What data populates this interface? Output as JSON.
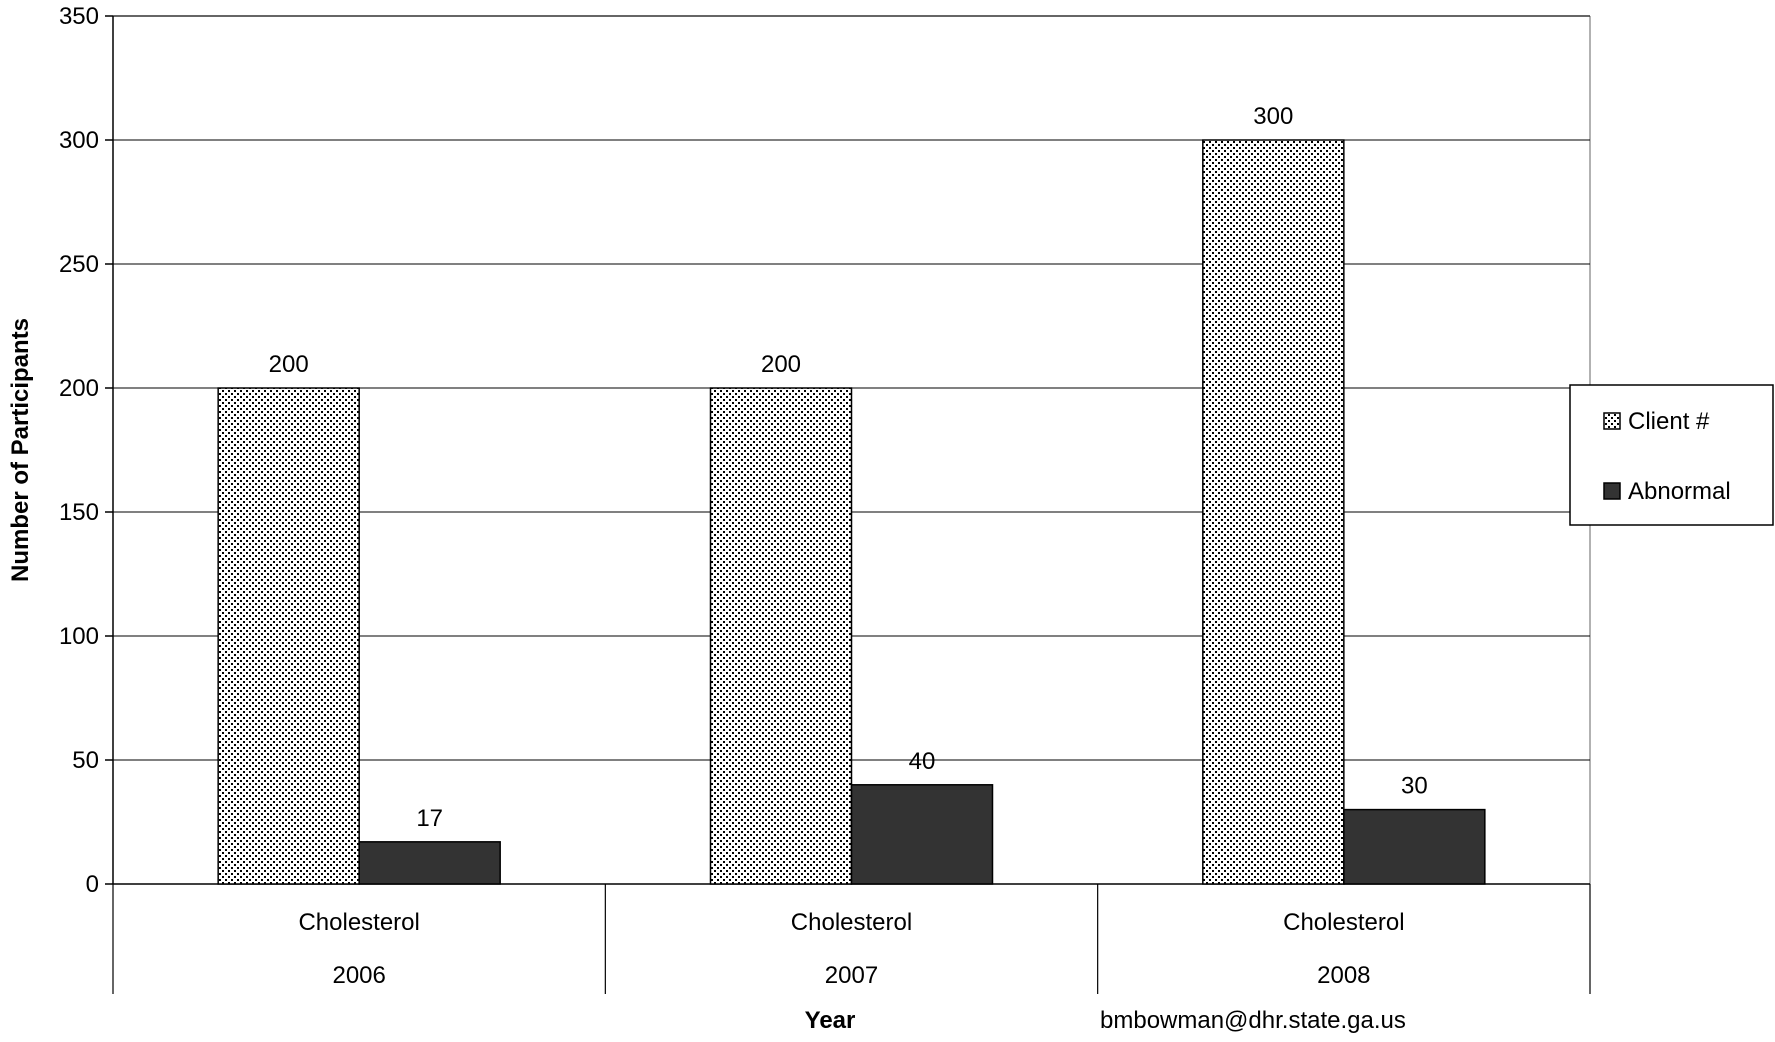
{
  "chart_data": {
    "type": "bar",
    "title": "",
    "xlabel": "Year",
    "ylabel": "Number of Participants",
    "ylim": [
      0,
      350
    ],
    "yticks": [
      0,
      50,
      100,
      150,
      200,
      250,
      300,
      350
    ],
    "grid": true,
    "legend_position": "right",
    "categories": [
      {
        "label": "Cholesterol",
        "group": "2006"
      },
      {
        "label": "Cholesterol",
        "group": "2007"
      },
      {
        "label": "Cholesterol",
        "group": "2008"
      }
    ],
    "series": [
      {
        "name": "Client #",
        "values": [
          200,
          200,
          300
        ],
        "pattern": "dotted",
        "color": "#ffffff"
      },
      {
        "name": "Abnormal",
        "values": [
          17,
          40,
          30
        ],
        "pattern": "solid",
        "color": "#333333"
      }
    ],
    "data_labels": true,
    "footer_note": "bmbowman@dhr.state.ga.us"
  }
}
